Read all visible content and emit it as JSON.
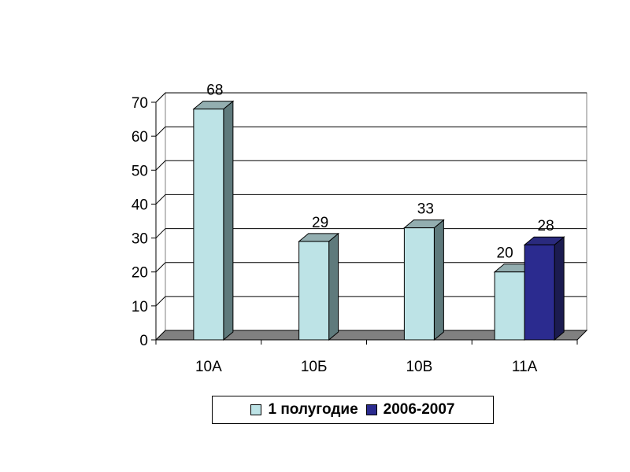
{
  "chart_data": {
    "type": "bar",
    "categories": [
      "10А",
      "10Б",
      "10В",
      "11А"
    ],
    "series": [
      {
        "name": "1 полугодие",
        "values": [
          68,
          29,
          33,
          20
        ],
        "color": "#bde3e6"
      },
      {
        "name": "2006-2007",
        "values": [
          null,
          null,
          null,
          28
        ],
        "color": "#2b2b8f"
      }
    ],
    "data_labels": [
      {
        "category": "10А",
        "series": 0,
        "text": "68"
      },
      {
        "category": "10Б",
        "series": 0,
        "text": "29"
      },
      {
        "category": "10В",
        "series": 0,
        "text": "33"
      },
      {
        "category": "11А",
        "series": 0,
        "text": "20"
      },
      {
        "category": "11А",
        "series": 1,
        "text": "28"
      }
    ],
    "yticks": [
      "0",
      "10",
      "20",
      "30",
      "40",
      "50",
      "60",
      "70"
    ],
    "ylim": [
      0,
      70
    ],
    "grid": true,
    "legend": "bottom",
    "title": "",
    "xlabel": "",
    "ylabel": ""
  }
}
